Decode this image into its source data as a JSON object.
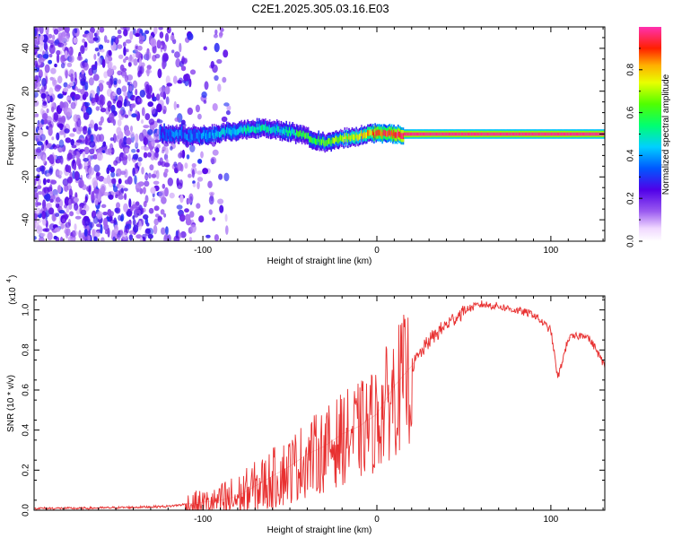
{
  "title": "C2E1.2025.305.03.16.E03",
  "colorbar": {
    "label": "Normalized spectral amplitude",
    "ticks": [
      "0.0",
      "0.2",
      "0.4",
      "0.6",
      "0.8"
    ],
    "tick_values": [
      0.0,
      0.2,
      0.4,
      0.6,
      0.8
    ],
    "range": [
      0,
      1
    ]
  },
  "chart_data": [
    {
      "type": "heatmap",
      "title": "C2E1.2025.305.03.16.E03",
      "xlabel": "Height of straight line (km)",
      "ylabel": "Frequency (Hz)",
      "xlim": [
        -197,
        131
      ],
      "ylim": [
        -50,
        50
      ],
      "xticks": [
        -100,
        0,
        100
      ],
      "xtick_labels": [
        "-100",
        "0",
        "100"
      ],
      "yticks": [
        -40,
        -20,
        0,
        20,
        40
      ],
      "ytick_labels": [
        "-40",
        "-20",
        "0",
        "20",
        "40"
      ],
      "colorbar_label": "Normalized spectral amplitude",
      "colorbar_range": [
        0,
        1
      ],
      "ridge": {
        "description": "signal ridge near 0 Hz",
        "x": [
          -125,
          -115,
          -105,
          -95,
          -85,
          -75,
          -65,
          -58,
          -50,
          -42,
          -35,
          -28,
          -20,
          -12,
          -5,
          0,
          5,
          10,
          15,
          20,
          40,
          60,
          80,
          100,
          131
        ],
        "freq_hz": [
          0,
          0,
          -1,
          0,
          1,
          2,
          3,
          2,
          1,
          -1,
          -3,
          -4,
          -2,
          -1,
          0,
          0.5,
          0,
          0,
          0,
          0,
          0,
          0,
          0,
          0,
          0
        ],
        "amplitude": [
          0.3,
          0.35,
          0.35,
          0.4,
          0.45,
          0.5,
          0.5,
          0.45,
          0.5,
          0.6,
          0.6,
          0.65,
          0.7,
          0.75,
          0.8,
          0.9,
          0.9,
          0.95,
          0.97,
          0.98,
          0.98,
          0.98,
          0.98,
          0.98,
          0.98
        ]
      },
      "noise_region": {
        "x_range": [
          -197,
          -95
        ],
        "amplitude": 0.1
      }
    },
    {
      "type": "line",
      "xlabel": "Height of straight line (km)",
      "ylabel": "SNR (10 * v/v)",
      "y_scale_label": "(x10",
      "y_scale_exponent": "4",
      "xlim": [
        -197,
        131
      ],
      "ylim": [
        0,
        1.07
      ],
      "xticks": [
        -100,
        0,
        100
      ],
      "xtick_labels": [
        "-100",
        "0",
        "100"
      ],
      "yticks": [
        0.0,
        0.2,
        0.4,
        0.6,
        0.8,
        1.0
      ],
      "ytick_labels": [
        "0.0",
        "0.2",
        "0.4",
        "0.6",
        "0.8",
        "1.0"
      ],
      "series": [
        {
          "name": "SNR",
          "color": "#e83030",
          "x": [
            -197,
            -170,
            -140,
            -120,
            -110,
            -100,
            -90,
            -80,
            -70,
            -60,
            -50,
            -40,
            -30,
            -20,
            -10,
            -5,
            0,
            5,
            10,
            20,
            30,
            40,
            50,
            60,
            70,
            80,
            90,
            100,
            104,
            110,
            120,
            125,
            131
          ],
          "y": [
            0.01,
            0.01,
            0.015,
            0.02,
            0.03,
            0.04,
            0.05,
            0.07,
            0.12,
            0.17,
            0.22,
            0.28,
            0.32,
            0.38,
            0.42,
            0.45,
            0.48,
            0.55,
            0.62,
            0.72,
            0.85,
            0.93,
            1.0,
            1.03,
            1.02,
            1.0,
            0.98,
            0.9,
            0.66,
            0.86,
            0.88,
            0.82,
            0.72
          ]
        }
      ]
    }
  ]
}
